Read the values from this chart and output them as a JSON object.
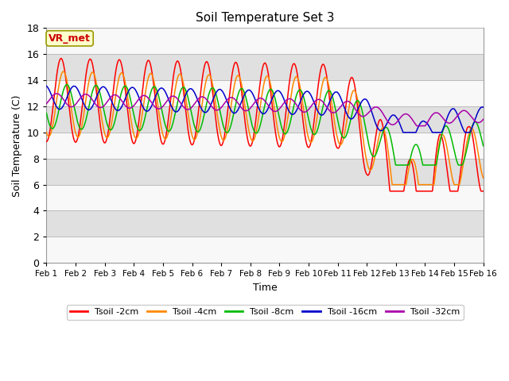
{
  "title": "Soil Temperature Set 3",
  "xlabel": "Time",
  "ylabel": "Soil Temperature (C)",
  "ylim": [
    0,
    18
  ],
  "yticks": [
    0,
    2,
    4,
    6,
    8,
    10,
    12,
    14,
    16,
    18
  ],
  "xlim": [
    0,
    15
  ],
  "xtick_labels": [
    "Feb 1",
    "Feb 2",
    "Feb 3",
    "Feb 4",
    "Feb 5",
    "Feb 6",
    "Feb 7",
    "Feb 8",
    "Feb 9",
    "Feb 10",
    "Feb 11",
    "Feb 12",
    "Feb 13",
    "Feb 14",
    "Feb 15",
    "Feb 16"
  ],
  "colors": {
    "Tsoil -2cm": "#ff0000",
    "Tsoil -4cm": "#ff8800",
    "Tsoil -8cm": "#00bb00",
    "Tsoil -16cm": "#0000cc",
    "Tsoil -32cm": "#aa00aa"
  },
  "plot_bg": "#f0f0f0",
  "band_light": "#f8f8f8",
  "band_dark": "#e0e0e0",
  "annotation_text": "VR_met",
  "annotation_fg": "#cc0000",
  "annotation_bg": "#ffffcc",
  "annotation_border": "#999900"
}
